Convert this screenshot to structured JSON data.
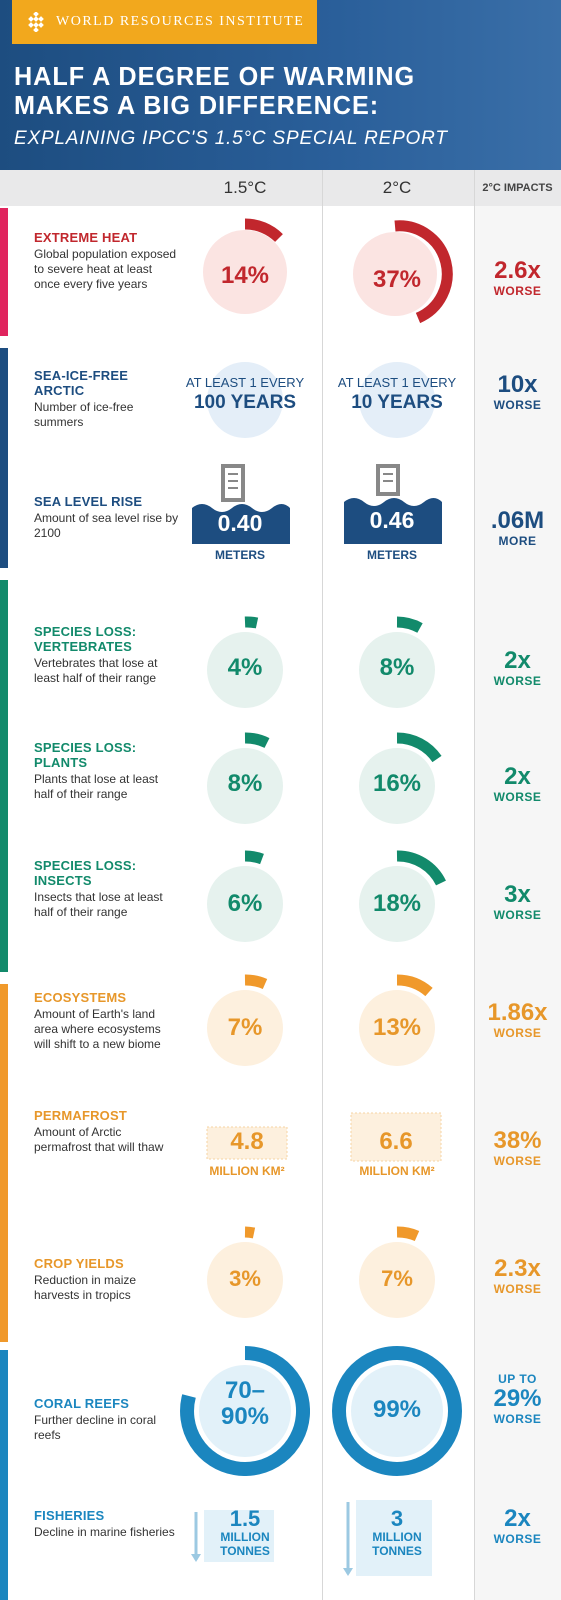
{
  "brand": {
    "name": "WORLD RESOURCES INSTITUTE",
    "logo_icon": "wri-logo-icon"
  },
  "title": {
    "line1": "HALF A DEGREE OF WARMING",
    "line2": "MAKES A BIG DIFFERENCE:",
    "subtitle": "EXPLAINING IPCC'S 1.5°C SPECIAL REPORT"
  },
  "columns": {
    "col1": "1.5°C",
    "col2": "2°C",
    "col3": "2°C IMPACTS"
  },
  "colors": {
    "red": "#c1272d",
    "navy": "#1d4d80",
    "green": "#128a6b",
    "orange": "#f0992b",
    "teal": "#1b86bf"
  },
  "rows": [
    {
      "title": "EXTREME HEAT",
      "desc": "Global population exposed to severe heat at least once every five years",
      "v15": "14%",
      "v2": "37%",
      "pct15": 0.14,
      "pct2": 0.37,
      "impact_big": "2.6x",
      "impact_small": "WORSE",
      "icon": "globe-icon"
    },
    {
      "title": "SEA-ICE-FREE ARCTIC",
      "desc": "Number of ice-free summers",
      "v15_top": "AT LEAST 1 EVERY",
      "v15_bottom": "100 YEARS",
      "v2_top": "AT LEAST 1 EVERY",
      "v2_bottom": "10 YEARS",
      "impact_big": "10x",
      "impact_small": "WORSE",
      "icon": "globe-icon"
    },
    {
      "title": "SEA LEVEL RISE",
      "desc": "Amount of sea level rise by 2100",
      "v15": "0.40",
      "v2": "0.46",
      "unit": "METERS",
      "impact_big": ".06M",
      "impact_small": "MORE",
      "icon": "water-gauge-icon"
    },
    {
      "title": "SPECIES LOSS: VERTEBRATES",
      "desc": "Vertebrates that lose at least half of their range",
      "v15": "4%",
      "v2": "8%",
      "pct15": 0.04,
      "pct2": 0.08,
      "impact_big": "2x",
      "impact_small": "WORSE",
      "icon": "monkey-icon"
    },
    {
      "title": "SPECIES LOSS: PLANTS",
      "desc": "Plants that lose at least half of their range",
      "v15": "8%",
      "v2": "16%",
      "pct15": 0.08,
      "pct2": 0.16,
      "impact_big": "2x",
      "impact_small": "WORSE",
      "icon": "tree-icon"
    },
    {
      "title": "SPECIES LOSS: INSECTS",
      "desc": "Insects that lose at least half of their range",
      "v15": "6%",
      "v2": "18%",
      "pct15": 0.06,
      "pct2": 0.18,
      "impact_big": "3x",
      "impact_small": "WORSE",
      "icon": "beetle-icon"
    },
    {
      "title": "ECOSYSTEMS",
      "desc": "Amount of Earth's land area where ecosystems will shift to a new biome",
      "v15": "7%",
      "v2": "13%",
      "pct15": 0.07,
      "pct2": 0.13,
      "impact_big": "1.86x",
      "impact_small": "WORSE",
      "icon": "sun-landscape-icon"
    },
    {
      "title": "PERMAFROST",
      "desc": "Amount of Arctic permafrost that will thaw",
      "v15": "4.8",
      "v2": "6.6",
      "unit": "MILLION KM²",
      "impact_big": "38%",
      "impact_small": "WORSE",
      "icon": "permafrost-icon"
    },
    {
      "title": "CROP YIELDS",
      "desc": "Reduction in maize harvests in tropics",
      "v15": "3%",
      "v2": "7%",
      "pct15": 0.03,
      "pct2": 0.07,
      "impact_big": "2.3x",
      "impact_small": "WORSE",
      "icon": "corn-icon"
    },
    {
      "title": "CORAL REEFS",
      "desc": "Further decline in coral reefs",
      "v15_line1": "70–",
      "v15_line2": "90%",
      "v2": "99%",
      "pct15": 0.8,
      "pct2": 0.99,
      "impact_top": "UP TO",
      "impact_big": "29%",
      "impact_small": "WORSE",
      "icon": "coral-icon"
    },
    {
      "title": "FISHERIES",
      "desc": "Decline in marine fisheries",
      "v15": "1.5",
      "v2": "3",
      "unit_line1": "MILLION",
      "unit_line2": "TONNES",
      "impact_big": "2x",
      "impact_small": "WORSE",
      "icon": "fish-icon"
    }
  ]
}
